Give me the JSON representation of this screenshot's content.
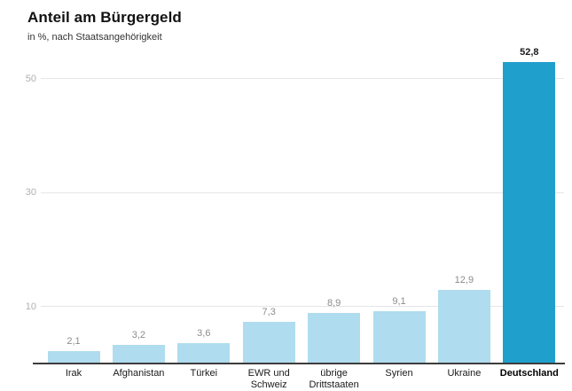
{
  "chart_data": {
    "type": "bar",
    "title": "Anteil am Bürgergeld",
    "subtitle": "in %, nach Staatsangehörigkeit",
    "categories": [
      "Irak",
      "Afghanistan",
      "Türkei",
      "EWR und Schweiz",
      "übrige Drittstaaten",
      "Syrien",
      "Ukraine",
      "Deutschland"
    ],
    "values": [
      2.1,
      3.2,
      3.6,
      7.3,
      8.9,
      9.1,
      12.9,
      52.8
    ],
    "value_labels": [
      "2,1",
      "3,2",
      "3,6",
      "7,3",
      "8,9",
      "9,1",
      "12,9",
      "52,8"
    ],
    "highlight_index": 7,
    "xlabel": "",
    "ylabel": "",
    "yticks": [
      10,
      30,
      50
    ],
    "ylim": [
      0,
      55
    ],
    "grid": "horizontal",
    "legend": "none",
    "colors": {
      "bar": "#afdcee",
      "bar_highlight": "#1e9fcc",
      "gridline": "#e6e6e6",
      "tick_label": "#b0b0b0",
      "value_label": "#8c8c8c",
      "value_label_highlight": "#1a1a1a",
      "axis_line": "#3c3c3c"
    }
  }
}
